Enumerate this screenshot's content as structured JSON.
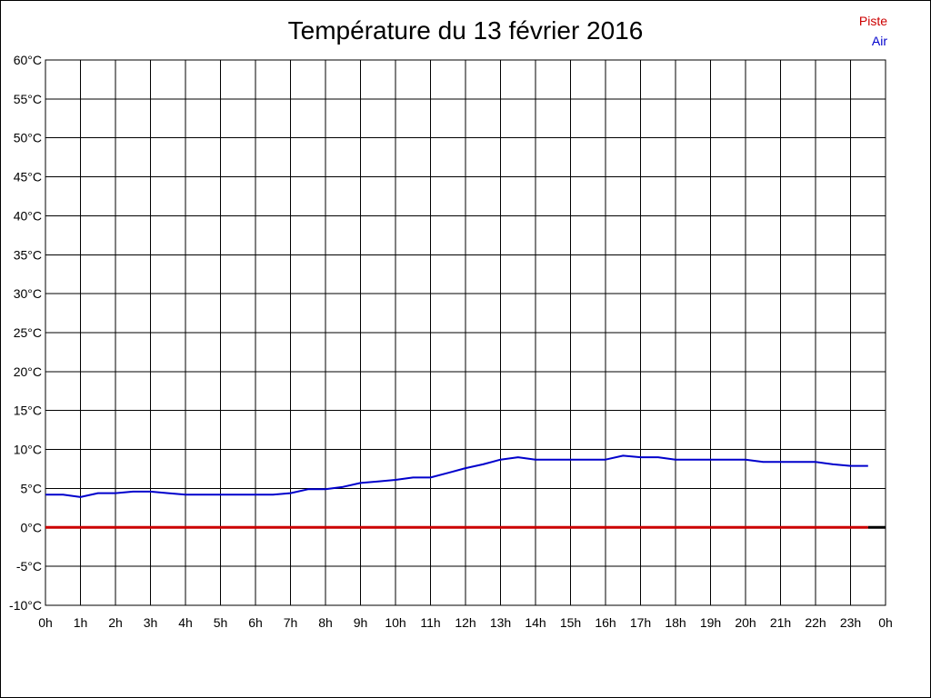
{
  "chart_data": {
    "type": "line",
    "title": "Température du 13 février 2016",
    "ylim": [
      -10,
      60
    ],
    "y_ticks": [
      "60°C",
      "55°C",
      "50°C",
      "45°C",
      "40°C",
      "35°C",
      "30°C",
      "25°C",
      "20°C",
      "15°C",
      "10°C",
      "5°C",
      "0°C",
      "-5°C",
      "-10°C"
    ],
    "y_tick_values": [
      60,
      55,
      50,
      45,
      40,
      35,
      30,
      25,
      20,
      15,
      10,
      5,
      0,
      -5,
      -10
    ],
    "x_ticks": [
      "0h",
      "1h",
      "2h",
      "3h",
      "4h",
      "5h",
      "6h",
      "7h",
      "8h",
      "9h",
      "10h",
      "11h",
      "12h",
      "13h",
      "14h",
      "15h",
      "16h",
      "17h",
      "18h",
      "19h",
      "20h",
      "21h",
      "22h",
      "23h",
      "0h"
    ],
    "xlim": [
      0,
      24
    ],
    "grid": true,
    "legend_position": "top-right",
    "series": [
      {
        "name": "Piste",
        "color": "#cc0000",
        "x": [
          0,
          23.5
        ],
        "values": [
          0,
          0
        ]
      },
      {
        "name": "Air",
        "color": "#0000cc",
        "x": [
          0,
          0.5,
          1,
          1.5,
          2,
          2.5,
          3,
          3.5,
          4,
          4.5,
          5,
          5.5,
          6,
          6.5,
          7,
          7.5,
          8,
          8.5,
          9,
          9.5,
          10,
          10.5,
          11,
          11.5,
          12,
          12.5,
          13,
          13.5,
          14,
          14.5,
          15,
          15.5,
          16,
          16.5,
          17,
          17.5,
          18,
          18.5,
          19,
          19.5,
          20,
          20.5,
          21,
          21.5,
          22,
          22.5,
          23,
          23.5
        ],
        "values": [
          4.2,
          4.2,
          3.9,
          4.4,
          4.4,
          4.6,
          4.6,
          4.4,
          4.2,
          4.2,
          4.2,
          4.2,
          4.2,
          4.2,
          4.4,
          4.9,
          4.9,
          5.2,
          5.7,
          5.9,
          6.1,
          6.4,
          6.4,
          7.0,
          7.6,
          8.1,
          8.7,
          9.0,
          8.7,
          8.7,
          8.7,
          8.7,
          8.7,
          9.2,
          9.0,
          9.0,
          8.7,
          8.7,
          8.7,
          8.7,
          8.7,
          8.4,
          8.4,
          8.4,
          8.4,
          8.1,
          7.9,
          7.9
        ]
      }
    ],
    "zero_line_tail": {
      "x": [
        23.5,
        24
      ],
      "value": 0,
      "color": "#000000"
    }
  }
}
